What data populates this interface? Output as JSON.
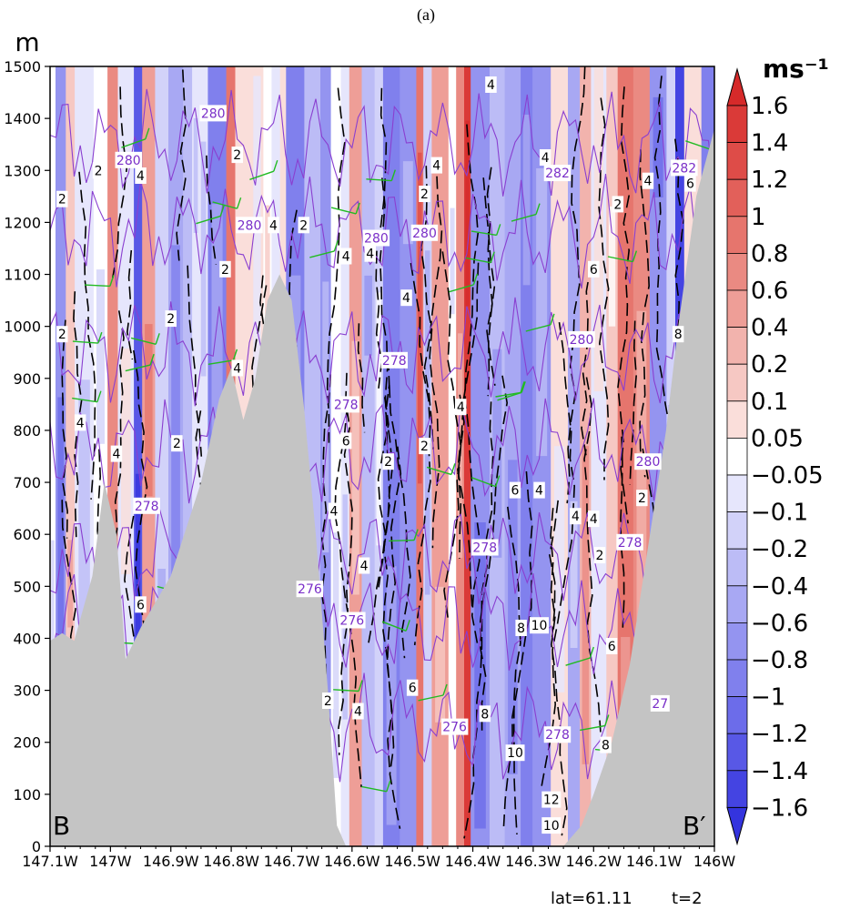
{
  "panel_label": "(a)",
  "footer": {
    "lat": "lat=61.11",
    "time": "t=2"
  },
  "section_labels": {
    "start": "B",
    "end": "B′"
  },
  "colors": {
    "terrain": "#c4c4c4",
    "wind_barb": "#22bb22",
    "theta_contour": "#8a3fd0",
    "theta_label": "#7a2fc8",
    "speed_contour": "#000000"
  },
  "chart_data": {
    "type": "heatmap",
    "title": "",
    "xlabel": "",
    "ylabel": "m",
    "unit": "ms⁻¹",
    "x_ticks": [
      "147.1W",
      "147W",
      "146.9W",
      "146.8W",
      "146.7W",
      "146.6W",
      "146.5W",
      "146.4W",
      "146.3W",
      "146.2W",
      "146.1W",
      "146W"
    ],
    "x_tick_values": [
      -147.1,
      -147.0,
      -146.9,
      -146.8,
      -146.7,
      -146.6,
      -146.5,
      -146.4,
      -146.3,
      -146.2,
      -146.1,
      -146.0
    ],
    "xlim": [
      -147.1,
      -146.0
    ],
    "y_ticks": [
      "0",
      "100",
      "200",
      "300",
      "400",
      "500",
      "600",
      "700",
      "800",
      "900",
      "1000",
      "1100",
      "1200",
      "1300",
      "1400",
      "1500"
    ],
    "ylim": [
      0,
      1500
    ],
    "colorbar": {
      "labels": [
        "1.6",
        "1.4",
        "1.2",
        "1",
        "0.8",
        "0.6",
        "0.4",
        "0.2",
        "0.1",
        "0.05",
        "−0.05",
        "−0.1",
        "−0.2",
        "−0.4",
        "−0.6",
        "−0.8",
        "−1",
        "−1.2",
        "−1.4",
        "−1.6"
      ],
      "colors": [
        "#d62a2a",
        "#da3a38",
        "#de4c48",
        "#e2605a",
        "#e6756d",
        "#ea8a82",
        "#ee9e97",
        "#f2b3ad",
        "#f6c8c3",
        "#fadeda",
        "#ffffff",
        "#e6e6fc",
        "#d2d2f9",
        "#bcbcf6",
        "#a8a8f3",
        "#9494f0",
        "#8080ed",
        "#6c6cea",
        "#5858e6",
        "#4444e2",
        "#3434de"
      ]
    },
    "terrain_profile": [
      {
        "lon": -147.1,
        "z": 395
      },
      {
        "lon": -147.08,
        "z": 410
      },
      {
        "lon": -147.06,
        "z": 395
      },
      {
        "lon": -147.03,
        "z": 520
      },
      {
        "lon": -147.01,
        "z": 700
      },
      {
        "lon": -146.99,
        "z": 600
      },
      {
        "lon": -146.975,
        "z": 360
      },
      {
        "lon": -146.95,
        "z": 420
      },
      {
        "lon": -146.9,
        "z": 520
      },
      {
        "lon": -146.85,
        "z": 700
      },
      {
        "lon": -146.82,
        "z": 860
      },
      {
        "lon": -146.8,
        "z": 920
      },
      {
        "lon": -146.78,
        "z": 820
      },
      {
        "lon": -146.76,
        "z": 900
      },
      {
        "lon": -146.74,
        "z": 1050
      },
      {
        "lon": -146.72,
        "z": 1100
      },
      {
        "lon": -146.7,
        "z": 1050
      },
      {
        "lon": -146.68,
        "z": 850
      },
      {
        "lon": -146.66,
        "z": 600
      },
      {
        "lon": -146.64,
        "z": 300
      },
      {
        "lon": -146.625,
        "z": 40
      },
      {
        "lon": -146.61,
        "z": 0
      },
      {
        "lon": -146.25,
        "z": 0
      },
      {
        "lon": -146.22,
        "z": 40
      },
      {
        "lon": -146.2,
        "z": 100
      },
      {
        "lon": -146.17,
        "z": 200
      },
      {
        "lon": -146.14,
        "z": 350
      },
      {
        "lon": -146.12,
        "z": 500
      },
      {
        "lon": -146.1,
        "z": 650
      },
      {
        "lon": -146.08,
        "z": 800
      },
      {
        "lon": -146.06,
        "z": 1000
      },
      {
        "lon": -146.03,
        "z": 1250
      },
      {
        "lon": -146.0,
        "z": 1380
      }
    ],
    "theta_contour_labels": [
      {
        "text": "280",
        "lon": -146.83,
        "z": 1410
      },
      {
        "text": "280",
        "lon": -146.97,
        "z": 1320
      },
      {
        "text": "280",
        "lon": -146.77,
        "z": 1195
      },
      {
        "text": "280",
        "lon": -146.56,
        "z": 1170
      },
      {
        "text": "280",
        "lon": -146.48,
        "z": 1180
      },
      {
        "text": "282",
        "lon": -146.26,
        "z": 1295
      },
      {
        "text": "282",
        "lon": -146.05,
        "z": 1305
      },
      {
        "text": "278",
        "lon": -146.53,
        "z": 935
      },
      {
        "text": "278",
        "lon": -146.61,
        "z": 850
      },
      {
        "text": "280",
        "lon": -146.22,
        "z": 975
      },
      {
        "text": "280",
        "lon": -146.11,
        "z": 740
      },
      {
        "text": "278",
        "lon": -146.94,
        "z": 655
      },
      {
        "text": "278",
        "lon": -146.38,
        "z": 575
      },
      {
        "text": "278",
        "lon": -146.14,
        "z": 585
      },
      {
        "text": "276",
        "lon": -146.67,
        "z": 495
      },
      {
        "text": "276",
        "lon": -146.6,
        "z": 435
      },
      {
        "text": "276",
        "lon": -146.43,
        "z": 230
      },
      {
        "text": "278",
        "lon": -146.26,
        "z": 215
      },
      {
        "text": "27",
        "lon": -146.09,
        "z": 275
      }
    ],
    "speed_contour_labels": [
      {
        "text": "4",
        "lon": -146.37,
        "z": 1465
      },
      {
        "text": "2",
        "lon": -146.79,
        "z": 1330
      },
      {
        "text": "4",
        "lon": -146.95,
        "z": 1290
      },
      {
        "text": "2",
        "lon": -147.02,
        "z": 1300
      },
      {
        "text": "4",
        "lon": -146.46,
        "z": 1310
      },
      {
        "text": "4",
        "lon": -146.28,
        "z": 1325
      },
      {
        "text": "2",
        "lon": -146.48,
        "z": 1255
      },
      {
        "text": "2",
        "lon": -147.08,
        "z": 1245
      },
      {
        "text": "4",
        "lon": -146.11,
        "z": 1280
      },
      {
        "text": "6",
        "lon": -146.04,
        "z": 1275
      },
      {
        "text": "2",
        "lon": -146.16,
        "z": 1235
      },
      {
        "text": "4",
        "lon": -146.73,
        "z": 1195
      },
      {
        "text": "2",
        "lon": -146.68,
        "z": 1195
      },
      {
        "text": "4",
        "lon": -146.61,
        "z": 1135
      },
      {
        "text": "4",
        "lon": -146.57,
        "z": 1140
      },
      {
        "text": "2",
        "lon": -146.81,
        "z": 1110
      },
      {
        "text": "6",
        "lon": -146.2,
        "z": 1110
      },
      {
        "text": "4",
        "lon": -146.51,
        "z": 1055
      },
      {
        "text": "2",
        "lon": -146.9,
        "z": 1015
      },
      {
        "text": "2",
        "lon": -147.08,
        "z": 985
      },
      {
        "text": "8",
        "lon": -146.06,
        "z": 985
      },
      {
        "text": "4",
        "lon": -146.79,
        "z": 920
      },
      {
        "text": "4",
        "lon": -146.42,
        "z": 845
      },
      {
        "text": "4",
        "lon": -147.05,
        "z": 815
      },
      {
        "text": "2",
        "lon": -146.89,
        "z": 775
      },
      {
        "text": "6",
        "lon": -146.61,
        "z": 780
      },
      {
        "text": "2",
        "lon": -146.48,
        "z": 770
      },
      {
        "text": "2",
        "lon": -146.54,
        "z": 740
      },
      {
        "text": "4",
        "lon": -146.99,
        "z": 755
      },
      {
        "text": "6",
        "lon": -146.33,
        "z": 685
      },
      {
        "text": "4",
        "lon": -146.29,
        "z": 685
      },
      {
        "text": "2",
        "lon": -146.12,
        "z": 670
      },
      {
        "text": "4",
        "lon": -146.23,
        "z": 635
      },
      {
        "text": "4",
        "lon": -146.2,
        "z": 630
      },
      {
        "text": "4",
        "lon": -146.63,
        "z": 645
      },
      {
        "text": "2",
        "lon": -146.19,
        "z": 560
      },
      {
        "text": "4",
        "lon": -146.58,
        "z": 540
      },
      {
        "text": "6",
        "lon": -146.95,
        "z": 465
      },
      {
        "text": "8",
        "lon": -146.32,
        "z": 420
      },
      {
        "text": "10",
        "lon": -146.29,
        "z": 425
      },
      {
        "text": "6",
        "lon": -146.17,
        "z": 385
      },
      {
        "text": "6",
        "lon": -146.5,
        "z": 305
      },
      {
        "text": "2",
        "lon": -146.64,
        "z": 280
      },
      {
        "text": "4",
        "lon": -146.59,
        "z": 260
      },
      {
        "text": "8",
        "lon": -146.38,
        "z": 255
      },
      {
        "text": "10",
        "lon": -146.33,
        "z": 180
      },
      {
        "text": "8",
        "lon": -146.18,
        "z": 195
      },
      {
        "text": "12",
        "lon": -146.27,
        "z": 90
      },
      {
        "text": "10",
        "lon": -146.27,
        "z": 40
      }
    ]
  }
}
